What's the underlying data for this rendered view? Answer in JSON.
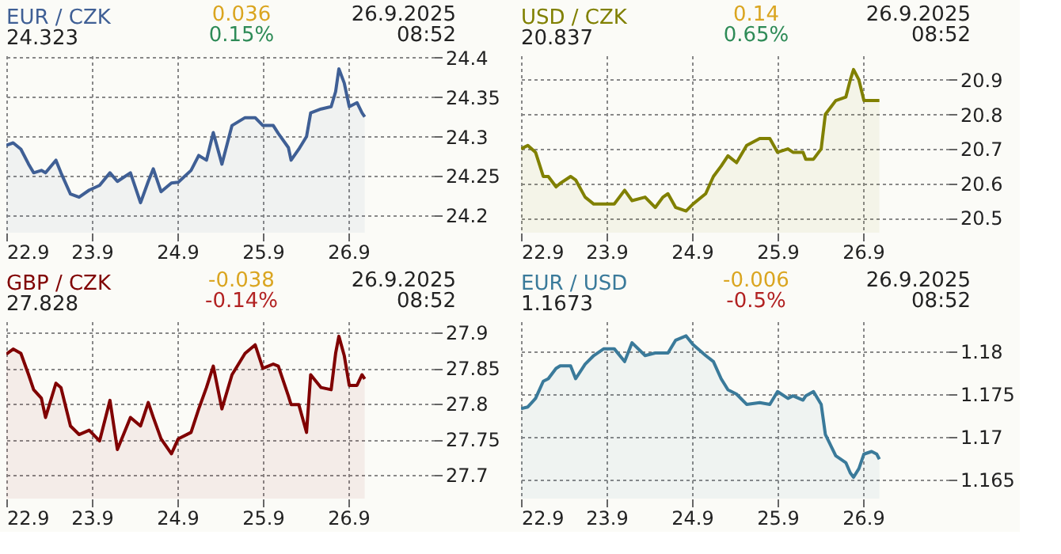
{
  "chart_data": [
    {
      "type": "area",
      "title": "EUR / CZK",
      "subtitle": "24.323",
      "annotations": [
        "0.036",
        "0.15%",
        "26.9.2025",
        "08:52"
      ],
      "x": [
        "2025-09-22T00:00",
        "2025-09-22T01:55",
        "2025-09-22T04:05",
        "2025-09-22T06:15",
        "2025-09-22T07:40",
        "2025-09-22T09:50",
        "2025-09-22T11:00",
        "2025-09-22T13:55",
        "2025-09-22T15:20",
        "2025-09-22T18:00",
        "2025-09-22T20:25",
        "2025-09-22T23:15",
        "2025-09-23T02:10",
        "2025-09-23T05:05",
        "2025-09-23T07:10",
        "2025-09-23T10:50",
        "2025-09-23T13:40",
        "2025-09-23T15:50",
        "2025-09-23T17:15",
        "2025-09-23T19:25",
        "2025-09-23T22:20",
        "2025-09-24T00:15",
        "2025-09-24T03:50",
        "2025-09-24T06:00",
        "2025-09-24T08:10",
        "2025-09-24T10:05",
        "2025-09-24T12:30",
        "2025-09-24T15:20",
        "2025-09-24T19:00",
        "2025-09-24T21:50",
        "2025-09-25T00:00",
        "2025-09-25T02:55",
        "2025-09-25T04:20",
        "2025-09-25T07:10",
        "2025-09-25T07:55",
        "2025-09-25T10:05",
        "2025-09-25T12:15",
        "2025-09-25T13:25",
        "2025-09-25T16:20",
        "2025-09-25T19:10",
        "2025-09-25T20:25",
        "2025-09-25T21:20",
        "2025-09-25T22:50",
        "2025-09-26T00:15",
        "2025-09-26T02:25",
        "2025-09-26T03:50",
        "2025-09-26T04:35"
      ],
      "series": [
        {
          "color": "#3f5f95",
          "values": [
            24.289,
            24.292,
            24.284,
            24.265,
            24.254,
            24.257,
            24.254,
            24.27,
            24.254,
            24.227,
            24.223,
            24.232,
            24.238,
            24.254,
            24.243,
            24.254,
            24.216,
            24.243,
            24.259,
            24.23,
            24.241,
            24.242,
            24.257,
            24.276,
            24.27,
            24.305,
            24.265,
            24.314,
            24.324,
            24.324,
            24.314,
            24.314,
            24.304,
            24.286,
            24.27,
            24.284,
            24.3,
            24.33,
            24.335,
            24.338,
            24.357,
            24.386,
            24.368,
            24.338,
            24.343,
            24.33,
            24.325
          ]
        }
      ],
      "xlim": [
        "2025-09-22T00:00",
        "2025-09-27T00:00"
      ],
      "xticks": [
        {
          "value": "2025-09-22",
          "label": "22.9"
        },
        {
          "value": "2025-09-23",
          "label": "23.9"
        },
        {
          "value": "2025-09-24",
          "label": "24.9"
        },
        {
          "value": "2025-09-25",
          "label": "25.9"
        },
        {
          "value": "2025-09-26",
          "label": "26.9"
        }
      ],
      "ylim": [
        24.178,
        24.403
      ],
      "yticks": [
        24.2,
        24.25,
        24.3,
        24.35,
        24.4
      ],
      "grid": true,
      "marker": "none",
      "line_style": "solid"
    },
    {
      "type": "area",
      "title": "USD / CZK",
      "subtitle": "20.837",
      "annotations": [
        "0.14",
        "0.65%",
        "26.9.2025",
        "08:52"
      ],
      "x": [
        "2025-09-22T00:00",
        "2025-09-22T01:55",
        "2025-09-22T04:05",
        "2025-09-22T06:15",
        "2025-09-22T07:40",
        "2025-09-22T09:50",
        "2025-09-22T11:00",
        "2025-09-22T13:55",
        "2025-09-22T15:20",
        "2025-09-22T18:00",
        "2025-09-22T20:25",
        "2025-09-22T23:15",
        "2025-09-23T02:10",
        "2025-09-23T05:05",
        "2025-09-23T07:10",
        "2025-09-23T10:50",
        "2025-09-23T13:40",
        "2025-09-23T15:50",
        "2025-09-23T17:15",
        "2025-09-23T19:25",
        "2025-09-23T22:20",
        "2025-09-24T00:15",
        "2025-09-24T03:50",
        "2025-09-24T06:00",
        "2025-09-24T08:10",
        "2025-09-24T10:05",
        "2025-09-24T12:30",
        "2025-09-24T15:20",
        "2025-09-24T19:00",
        "2025-09-24T21:50",
        "2025-09-25T00:00",
        "2025-09-25T02:55",
        "2025-09-25T04:20",
        "2025-09-25T07:10",
        "2025-09-25T07:55",
        "2025-09-25T10:05",
        "2025-09-25T12:15",
        "2025-09-25T13:25",
        "2025-09-25T16:20",
        "2025-09-25T19:10",
        "2025-09-25T20:25",
        "2025-09-25T21:20",
        "2025-09-25T22:50",
        "2025-09-26T00:15",
        "2025-09-26T02:25",
        "2025-09-26T03:50",
        "2025-09-26T04:35"
      ],
      "series": [
        {
          "color": "#808000",
          "values": [
            20.7,
            20.71,
            20.69,
            20.62,
            20.62,
            20.59,
            20.6,
            20.62,
            20.61,
            20.56,
            20.54,
            20.54,
            20.54,
            20.58,
            20.55,
            20.56,
            20.53,
            20.56,
            20.57,
            20.53,
            20.52,
            20.54,
            20.57,
            20.62,
            20.65,
            20.68,
            20.66,
            20.71,
            20.73,
            20.73,
            20.69,
            20.7,
            20.69,
            20.69,
            20.67,
            20.67,
            20.7,
            20.8,
            20.84,
            20.85,
            20.9,
            20.93,
            20.9,
            20.84,
            20.84,
            20.84,
            20.84
          ]
        }
      ],
      "xlim": [
        "2025-09-22T00:00",
        "2025-09-27T00:00"
      ],
      "xticks": [
        {
          "value": "2025-09-22",
          "label": "22.9"
        },
        {
          "value": "2025-09-23",
          "label": "23.9"
        },
        {
          "value": "2025-09-24",
          "label": "24.9"
        },
        {
          "value": "2025-09-25",
          "label": "25.9"
        },
        {
          "value": "2025-09-26",
          "label": "26.9"
        }
      ],
      "ylim": [
        20.457,
        20.971
      ],
      "yticks": [
        20.5,
        20.6,
        20.7,
        20.8,
        20.9
      ],
      "grid": true,
      "marker": "none",
      "line_style": "solid"
    },
    {
      "type": "area",
      "title": "GBP / CZK",
      "subtitle": "27.828",
      "annotations": [
        "-0.038",
        "-0.14%",
        "26.9.2025",
        "08:52"
      ],
      "x": [
        "2025-09-22T00:00",
        "2025-09-22T01:55",
        "2025-09-22T04:05",
        "2025-09-22T06:15",
        "2025-09-22T07:40",
        "2025-09-22T09:50",
        "2025-09-22T11:00",
        "2025-09-22T13:55",
        "2025-09-22T15:20",
        "2025-09-22T18:00",
        "2025-09-22T20:25",
        "2025-09-22T23:15",
        "2025-09-23T02:10",
        "2025-09-23T05:05",
        "2025-09-23T07:10",
        "2025-09-23T10:50",
        "2025-09-23T13:40",
        "2025-09-23T15:50",
        "2025-09-23T17:15",
        "2025-09-23T19:25",
        "2025-09-23T22:20",
        "2025-09-24T00:15",
        "2025-09-24T03:50",
        "2025-09-24T06:00",
        "2025-09-24T08:10",
        "2025-09-24T10:05",
        "2025-09-24T12:30",
        "2025-09-24T15:20",
        "2025-09-24T19:00",
        "2025-09-24T21:50",
        "2025-09-25T00:00",
        "2025-09-25T02:55",
        "2025-09-25T04:20",
        "2025-09-25T07:10",
        "2025-09-25T07:55",
        "2025-09-25T10:05",
        "2025-09-25T12:15",
        "2025-09-25T13:25",
        "2025-09-25T16:20",
        "2025-09-25T19:10",
        "2025-09-25T20:25",
        "2025-09-25T21:20",
        "2025-09-25T22:50",
        "2025-09-26T00:15",
        "2025-09-26T02:25",
        "2025-09-26T03:50",
        "2025-09-26T04:35"
      ],
      "series": [
        {
          "color": "#800000",
          "values": [
            27.87,
            27.877,
            27.871,
            27.841,
            27.82,
            27.808,
            27.781,
            27.829,
            27.823,
            27.769,
            27.757,
            27.763,
            27.748,
            27.805,
            27.736,
            27.781,
            27.769,
            27.802,
            27.781,
            27.751,
            27.73,
            27.751,
            27.76,
            27.793,
            27.823,
            27.853,
            27.793,
            27.841,
            27.871,
            27.883,
            27.85,
            27.856,
            27.853,
            27.811,
            27.799,
            27.799,
            27.76,
            27.841,
            27.823,
            27.82,
            27.871,
            27.895,
            27.868,
            27.826,
            27.826,
            27.841,
            27.835
          ]
        }
      ],
      "xlim": [
        "2025-09-22T00:00",
        "2025-09-27T00:00"
      ],
      "xticks": [
        {
          "value": "2025-09-22",
          "label": "22.9"
        },
        {
          "value": "2025-09-23",
          "label": "23.9"
        },
        {
          "value": "2025-09-24",
          "label": "24.9"
        },
        {
          "value": "2025-09-25",
          "label": "25.9"
        },
        {
          "value": "2025-09-26",
          "label": "26.9"
        }
      ],
      "ylim": [
        27.667,
        27.916
      ],
      "yticks": [
        27.7,
        27.75,
        27.8,
        27.85,
        27.9
      ],
      "grid": true,
      "marker": "none",
      "line_style": "solid"
    },
    {
      "type": "area",
      "title": "EUR / USD",
      "subtitle": "1.1673",
      "annotations": [
        "-0.006",
        "-0.5%",
        "26.9.2025",
        "08:52"
      ],
      "x": [
        "2025-09-22T00:00",
        "2025-09-22T01:55",
        "2025-09-22T04:05",
        "2025-09-22T06:15",
        "2025-09-22T07:40",
        "2025-09-22T09:50",
        "2025-09-22T11:00",
        "2025-09-22T13:55",
        "2025-09-22T15:20",
        "2025-09-22T18:00",
        "2025-09-22T20:25",
        "2025-09-22T23:15",
        "2025-09-23T02:10",
        "2025-09-23T05:05",
        "2025-09-23T07:10",
        "2025-09-23T10:50",
        "2025-09-23T13:40",
        "2025-09-23T15:50",
        "2025-09-23T17:15",
        "2025-09-23T19:25",
        "2025-09-23T22:20",
        "2025-09-24T00:15",
        "2025-09-24T03:50",
        "2025-09-24T06:00",
        "2025-09-24T08:10",
        "2025-09-24T10:05",
        "2025-09-24T12:30",
        "2025-09-24T15:20",
        "2025-09-24T19:00",
        "2025-09-24T21:50",
        "2025-09-25T00:00",
        "2025-09-25T02:55",
        "2025-09-25T04:20",
        "2025-09-25T07:10",
        "2025-09-25T07:55",
        "2025-09-25T10:05",
        "2025-09-25T12:15",
        "2025-09-25T13:25",
        "2025-09-25T16:20",
        "2025-09-25T19:10",
        "2025-09-25T20:25",
        "2025-09-25T21:20",
        "2025-09-25T22:50",
        "2025-09-26T00:15",
        "2025-09-26T02:25",
        "2025-09-26T03:50",
        "2025-09-26T04:35"
      ],
      "series": [
        {
          "color": "#3a7a9a",
          "values": [
            1.1733,
            1.1735,
            1.1745,
            1.1765,
            1.1768,
            1.178,
            1.1783,
            1.1783,
            1.1768,
            1.1785,
            1.1795,
            1.1803,
            1.1803,
            1.1788,
            1.181,
            1.1795,
            1.1798,
            1.1798,
            1.1798,
            1.1813,
            1.1818,
            1.1808,
            1.1795,
            1.1788,
            1.1768,
            1.1755,
            1.175,
            1.1738,
            1.174,
            1.1738,
            1.1753,
            1.1745,
            1.1748,
            1.1743,
            1.1748,
            1.1753,
            1.1738,
            1.1703,
            1.1678,
            1.167,
            1.1658,
            1.1653,
            1.1663,
            1.168,
            1.1683,
            1.168,
            1.1674
          ]
        }
      ],
      "xlim": [
        "2025-09-22T00:00",
        "2025-09-27T00:00"
      ],
      "xticks": [
        {
          "value": "2025-09-22",
          "label": "22.9"
        },
        {
          "value": "2025-09-23",
          "label": "23.9"
        },
        {
          "value": "2025-09-24",
          "label": "24.9"
        },
        {
          "value": "2025-09-25",
          "label": "25.9"
        },
        {
          "value": "2025-09-26",
          "label": "26.9"
        }
      ],
      "ylim": [
        1.1628,
        1.1835
      ],
      "yticks": [
        1.165,
        1.17,
        1.175,
        1.18
      ],
      "grid": true,
      "marker": "none",
      "line_style": "solid"
    }
  ]
}
